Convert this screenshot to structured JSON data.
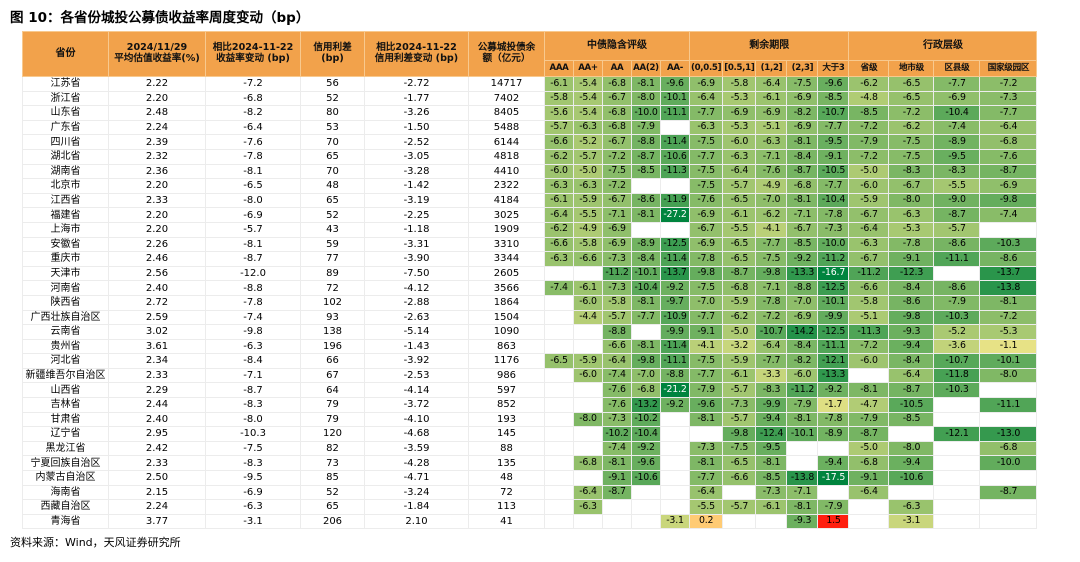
{
  "title": "图 10：各省份城投公募债收益率周度变动（bp）",
  "source": "资料来源：Wind，天风证券研究所",
  "colors": {
    "header_bg": "#F2A24B",
    "header_border": "#F8C98E",
    "neg_from": "#E9E386",
    "neg_to": "#00843E",
    "pos_from": "#FFE584",
    "pos_to": "#FF1F0F",
    "grid": "#ECECEC"
  },
  "columns": {
    "province": "省份",
    "static": [
      [
        "2024/11/29",
        "平均估值收益率(%)"
      ],
      [
        "相比2024-11-22",
        "收益率变动 (bp)"
      ],
      [
        "信用利差",
        "(bp)"
      ],
      [
        "相比2024-11-22",
        "信用利差变动 (bp)"
      ],
      [
        "公募城投债余",
        "额（亿元）"
      ]
    ],
    "groups": [
      {
        "label": "中债隐含评级",
        "children": [
          "AAA",
          "AA+",
          "AA",
          "AA(2)",
          "AA-"
        ]
      },
      {
        "label": "剩余期限",
        "children": [
          "(0,0.5]",
          "[0.5,1]",
          "(1,2]",
          "(2,3]",
          "大于3"
        ]
      },
      {
        "label": "行政层级",
        "children": [
          "省级",
          "地市级",
          "区县级",
          "国家级园区"
        ]
      }
    ]
  },
  "rows": [
    {
      "name": "江苏省",
      "vals": [
        "2.22",
        "-7.2",
        "56",
        "-2.72",
        "14717"
      ],
      "heat": [
        -6.1,
        -5.4,
        -6.8,
        -8.1,
        -9.6,
        -6.9,
        -5.8,
        -6.4,
        -7.5,
        -9.6,
        -6.2,
        -6.5,
        -7.7,
        -7.2
      ]
    },
    {
      "name": "浙江省",
      "vals": [
        "2.20",
        "-6.8",
        "52",
        "-1.77",
        "7402"
      ],
      "heat": [
        -5.8,
        -5.4,
        -6.7,
        -8.0,
        -10.1,
        -6.4,
        -5.3,
        -6.1,
        -6.9,
        -8.5,
        -4.8,
        -6.5,
        -6.9,
        -7.3
      ]
    },
    {
      "name": "山东省",
      "vals": [
        "2.48",
        "-8.2",
        "80",
        "-3.26",
        "8405"
      ],
      "heat": [
        -5.6,
        -5.4,
        -6.8,
        -10.0,
        -11.1,
        -7.7,
        -6.9,
        -6.9,
        -8.2,
        -10.7,
        -8.5,
        -7.2,
        -10.4,
        -7.7
      ]
    },
    {
      "name": "广东省",
      "vals": [
        "2.24",
        "-6.4",
        "53",
        "-1.50",
        "5488"
      ],
      "heat": [
        -5.7,
        -6.3,
        -6.8,
        -7.9,
        null,
        -6.3,
        -5.3,
        -5.1,
        -6.9,
        -7.7,
        -7.2,
        -6.2,
        -7.4,
        -6.4
      ]
    },
    {
      "name": "四川省",
      "vals": [
        "2.39",
        "-7.6",
        "70",
        "-2.52",
        "6144"
      ],
      "heat": [
        -6.6,
        -5.2,
        -6.7,
        -8.8,
        -11.4,
        -7.5,
        -6.0,
        -6.3,
        -8.1,
        -9.5,
        -7.9,
        -7.5,
        -8.9,
        -6.8
      ]
    },
    {
      "name": "湖北省",
      "vals": [
        "2.32",
        "-7.8",
        "65",
        "-3.05",
        "4818"
      ],
      "heat": [
        -6.2,
        -5.7,
        -7.2,
        -8.7,
        -10.6,
        -7.7,
        -6.3,
        -7.1,
        -8.4,
        -9.1,
        -7.2,
        -7.5,
        -9.5,
        -7.6
      ]
    },
    {
      "name": "湖南省",
      "vals": [
        "2.36",
        "-8.1",
        "70",
        "-3.28",
        "4410"
      ],
      "heat": [
        -6.0,
        -5.0,
        -7.5,
        -8.5,
        -11.3,
        -7.5,
        -6.4,
        -7.6,
        -8.7,
        -10.5,
        -5.0,
        -8.3,
        -8.3,
        -8.7
      ]
    },
    {
      "name": "北京市",
      "vals": [
        "2.20",
        "-6.5",
        "48",
        "-1.42",
        "2322"
      ],
      "heat": [
        -6.3,
        -6.3,
        -7.2,
        null,
        null,
        -7.5,
        -5.7,
        -4.9,
        -6.8,
        -7.7,
        -6.0,
        -6.7,
        -5.5,
        -6.9
      ]
    },
    {
      "name": "江西省",
      "vals": [
        "2.33",
        "-8.0",
        "65",
        "-3.19",
        "4184"
      ],
      "heat": [
        -6.1,
        -5.9,
        -6.7,
        -8.6,
        -11.9,
        -7.6,
        -6.5,
        -7.0,
        -8.1,
        -10.4,
        -5.9,
        -8.0,
        -9.0,
        -9.8
      ]
    },
    {
      "name": "福建省",
      "vals": [
        "2.20",
        "-6.9",
        "52",
        "-2.25",
        "3025"
      ],
      "heat": [
        -6.4,
        -5.5,
        -7.1,
        -8.1,
        -27.2,
        -6.9,
        -6.1,
        -6.2,
        -7.1,
        -7.8,
        -6.7,
        -6.3,
        -8.7,
        -7.4
      ]
    },
    {
      "name": "上海市",
      "vals": [
        "2.20",
        "-5.7",
        "43",
        "-1.18",
        "1909"
      ],
      "heat": [
        -6.2,
        -4.9,
        -6.9,
        null,
        null,
        -6.7,
        -5.5,
        -4.1,
        -6.7,
        -7.3,
        -6.4,
        -5.3,
        -5.7,
        null
      ]
    },
    {
      "name": "安徽省",
      "vals": [
        "2.26",
        "-8.1",
        "59",
        "-3.31",
        "3310"
      ],
      "heat": [
        -6.6,
        -5.8,
        -6.9,
        -8.9,
        -12.5,
        -6.9,
        -6.5,
        -7.7,
        -8.5,
        -10.0,
        -6.3,
        -7.8,
        -8.6,
        -10.3
      ]
    },
    {
      "name": "重庆市",
      "vals": [
        "2.46",
        "-8.7",
        "77",
        "-3.90",
        "3344"
      ],
      "heat": [
        -6.3,
        -6.6,
        -7.3,
        -8.4,
        -11.4,
        -7.8,
        -6.5,
        -7.5,
        -9.2,
        -11.2,
        -6.7,
        -9.1,
        -11.1,
        -8.6
      ]
    },
    {
      "name": "天津市",
      "vals": [
        "2.56",
        "-12.0",
        "89",
        "-7.50",
        "2605"
      ],
      "heat": [
        null,
        null,
        -11.2,
        -10.1,
        -13.7,
        -9.8,
        -8.7,
        -9.8,
        -13.3,
        -16.7,
        -11.2,
        -12.3,
        null,
        -13.7
      ]
    },
    {
      "name": "河南省",
      "vals": [
        "2.40",
        "-8.8",
        "72",
        "-4.12",
        "3566"
      ],
      "heat": [
        -7.4,
        -6.1,
        -7.3,
        -10.4,
        -9.2,
        -7.5,
        -6.8,
        -7.1,
        -8.8,
        -12.5,
        -6.6,
        -8.4,
        -8.6,
        -13.8
      ]
    },
    {
      "name": "陕西省",
      "vals": [
        "2.72",
        "-7.8",
        "102",
        "-2.88",
        "1864"
      ],
      "heat": [
        null,
        -6.0,
        -5.8,
        -8.1,
        -9.7,
        -7.0,
        -5.9,
        -7.8,
        -7.0,
        -10.1,
        -5.8,
        -8.6,
        -7.9,
        -8.1
      ]
    },
    {
      "name": "广西壮族自治区",
      "vals": [
        "2.59",
        "-7.4",
        "93",
        "-2.63",
        "1504"
      ],
      "heat": [
        null,
        -4.4,
        -5.7,
        -7.7,
        -10.9,
        -7.7,
        -6.2,
        -7.2,
        -6.9,
        -9.9,
        -5.1,
        -9.8,
        -10.3,
        -7.2
      ]
    },
    {
      "name": "云南省",
      "vals": [
        "3.02",
        "-9.8",
        "138",
        "-5.14",
        "1090"
      ],
      "heat": [
        null,
        null,
        -8.8,
        null,
        -9.9,
        -9.1,
        -5.0,
        -10.7,
        -14.2,
        -12.5,
        -11.3,
        -9.3,
        -5.2,
        -5.3
      ]
    },
    {
      "name": "贵州省",
      "vals": [
        "3.61",
        "-6.3",
        "196",
        "-1.43",
        "863"
      ],
      "heat": [
        null,
        null,
        -6.6,
        -8.1,
        -11.4,
        -4.1,
        -3.2,
        -6.4,
        -8.4,
        -11.1,
        -7.2,
        -9.4,
        -3.6,
        -1.1
      ]
    },
    {
      "name": "河北省",
      "vals": [
        "2.34",
        "-8.4",
        "66",
        "-3.92",
        "1176"
      ],
      "heat": [
        -6.5,
        -5.9,
        -6.4,
        -9.8,
        -11.1,
        -7.5,
        -5.9,
        -7.7,
        -8.2,
        -12.1,
        -6.0,
        -8.4,
        -10.7,
        -10.1
      ]
    },
    {
      "name": "新疆维吾尔自治区",
      "vals": [
        "2.33",
        "-7.1",
        "67",
        "-2.53",
        "986"
      ],
      "heat": [
        null,
        -6.0,
        -7.4,
        -7.0,
        -8.8,
        -7.7,
        -6.1,
        -3.3,
        -6.0,
        -13.3,
        null,
        -6.4,
        -11.8,
        -8.0
      ]
    },
    {
      "name": "山西省",
      "vals": [
        "2.29",
        "-8.7",
        "64",
        "-4.14",
        "597"
      ],
      "heat": [
        null,
        null,
        -7.6,
        -6.8,
        -21.2,
        -7.9,
        -5.7,
        -8.3,
        -11.2,
        -9.2,
        -8.1,
        -8.7,
        -10.3,
        null
      ]
    },
    {
      "name": "吉林省",
      "vals": [
        "2.44",
        "-8.3",
        "79",
        "-3.72",
        "852"
      ],
      "heat": [
        null,
        null,
        -7.6,
        -13.2,
        -9.2,
        -9.6,
        -7.3,
        -9.9,
        -7.9,
        -1.7,
        -4.7,
        -10.5,
        null,
        -11.1
      ]
    },
    {
      "name": "甘肃省",
      "vals": [
        "2.40",
        "-8.0",
        "79",
        "-4.10",
        "193"
      ],
      "heat": [
        null,
        -8.0,
        -7.3,
        -10.2,
        null,
        -8.1,
        -5.7,
        -9.4,
        -8.1,
        -7.8,
        -7.9,
        -8.5,
        null,
        null
      ]
    },
    {
      "name": "辽宁省",
      "vals": [
        "2.95",
        "-10.3",
        "120",
        "-4.68",
        "145"
      ],
      "heat": [
        null,
        null,
        -10.2,
        -10.4,
        null,
        null,
        -9.8,
        -12.4,
        -10.1,
        -8.9,
        -8.7,
        null,
        -12.1,
        -13.0
      ]
    },
    {
      "name": "黑龙江省",
      "vals": [
        "2.42",
        "-7.5",
        "82",
        "-3.59",
        "88"
      ],
      "heat": [
        null,
        null,
        -7.4,
        -9.2,
        null,
        -7.3,
        -7.5,
        -9.5,
        null,
        null,
        -5.0,
        -8.0,
        null,
        -6.8
      ]
    },
    {
      "name": "宁夏回族自治区",
      "vals": [
        "2.33",
        "-8.3",
        "73",
        "-4.28",
        "135"
      ],
      "heat": [
        null,
        -6.8,
        -8.1,
        -9.6,
        null,
        -8.1,
        -6.5,
        -8.1,
        null,
        -9.4,
        -6.8,
        -9.4,
        null,
        -10.0
      ]
    },
    {
      "name": "内蒙古自治区",
      "vals": [
        "2.50",
        "-9.5",
        "85",
        "-4.71",
        "48"
      ],
      "heat": [
        null,
        null,
        -9.1,
        -10.6,
        null,
        -7.7,
        -6.6,
        -8.5,
        -13.8,
        -17.5,
        -9.1,
        -10.6,
        null,
        null
      ]
    },
    {
      "name": "海南省",
      "vals": [
        "2.15",
        "-6.9",
        "52",
        "-3.24",
        "72"
      ],
      "heat": [
        null,
        -6.4,
        -8.7,
        null,
        null,
        -6.4,
        null,
        -7.3,
        -7.1,
        null,
        -6.4,
        null,
        null,
        -8.7
      ]
    },
    {
      "name": "西藏自治区",
      "vals": [
        "2.24",
        "-6.3",
        "65",
        "-1.84",
        "113"
      ],
      "heat": [
        null,
        -6.3,
        null,
        null,
        null,
        -5.5,
        -5.7,
        -6.1,
        -8.1,
        -7.9,
        null,
        -6.3,
        null,
        null
      ]
    },
    {
      "name": "青海省",
      "vals": [
        "3.77",
        "-3.1",
        "206",
        "2.10",
        "41"
      ],
      "heat": [
        null,
        null,
        null,
        null,
        -3.1,
        0.2,
        null,
        null,
        -9.3,
        1.5,
        null,
        -3.1,
        null,
        null
      ]
    }
  ]
}
